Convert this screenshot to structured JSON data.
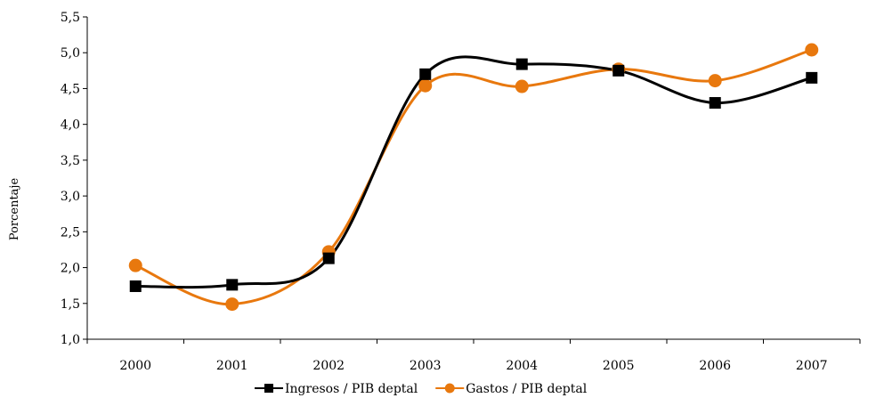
{
  "chart_data": {
    "type": "line",
    "title": "",
    "xlabel": "",
    "ylabel": "Porcentaje",
    "categories": [
      "2000",
      "2001",
      "2002",
      "2003",
      "2004",
      "2005",
      "2006",
      "2007"
    ],
    "ylim": [
      1.0,
      5.5
    ],
    "yticks": [
      1.0,
      1.5,
      2.0,
      2.5,
      3.0,
      3.5,
      4.0,
      4.5,
      5.0,
      5.5
    ],
    "ytick_labels": [
      "1,0",
      "1,5",
      "2,0",
      "2,5",
      "3,0",
      "3,5",
      "4,0",
      "4,5",
      "5,0",
      "5,5"
    ],
    "grid": false,
    "smooth": true,
    "legend_position": "bottom",
    "series": [
      {
        "name": "Ingresos / PIB deptal",
        "color": "#000000",
        "marker": "square",
        "values": [
          1.74,
          1.76,
          2.13,
          4.7,
          4.84,
          4.75,
          4.3,
          4.65
        ]
      },
      {
        "name": "Gastos / PIB deptal",
        "color": "#e8780e",
        "marker": "circle",
        "values": [
          2.03,
          1.49,
          2.22,
          4.54,
          4.53,
          4.77,
          4.61,
          5.04
        ]
      }
    ]
  }
}
